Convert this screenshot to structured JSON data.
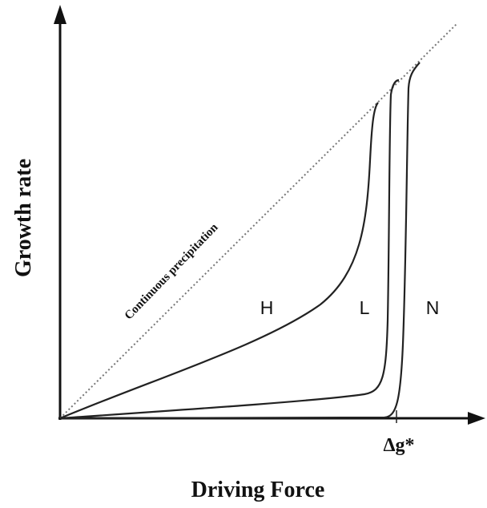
{
  "axes": {
    "x_label": "Driving Force",
    "y_label": "Growth rate"
  },
  "annotations": {
    "diagonal": "Continuous precipitation",
    "threshold": "Δg*"
  },
  "curves": [
    {
      "label": "H"
    },
    {
      "label": "L"
    },
    {
      "label": "N"
    }
  ]
}
